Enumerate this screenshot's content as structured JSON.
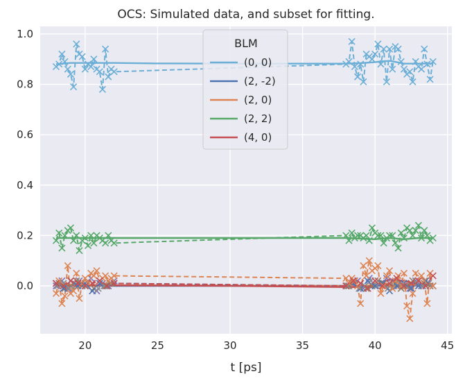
{
  "chart_data": {
    "type": "line",
    "title": "OCS: Simulated data, and subset for fitting.",
    "xlabel": "t [ps]",
    "ylabel": "",
    "xlim": [
      16.9,
      45.3
    ],
    "ylim": [
      -0.19,
      1.03
    ],
    "xticks": [
      20,
      25,
      30,
      35,
      40,
      45
    ],
    "yticks": [
      0.0,
      0.2,
      0.4,
      0.6,
      0.8,
      1.0
    ],
    "grid": true,
    "background": "#eaeaf2",
    "legend": {
      "title": "BLM",
      "placement": "upper-center"
    },
    "series": [
      {
        "name": "(0, 0)",
        "color": "#6baed6",
        "model": {
          "x": [
            18,
            19,
            20,
            21,
            22,
            25,
            30,
            35,
            38,
            39,
            40,
            40.5,
            41,
            41.5,
            42,
            43,
            44
          ],
          "y": [
            0.88,
            0.885,
            0.885,
            0.885,
            0.885,
            0.883,
            0.882,
            0.882,
            0.882,
            0.884,
            0.888,
            0.891,
            0.893,
            0.888,
            0.882,
            0.882,
            0.883
          ]
        },
        "fit_line": {
          "x": [
            18,
            18.2,
            18.4,
            18.6,
            18.8,
            19.0,
            19.2,
            19.4,
            19.6,
            19.8,
            20.0,
            20.2,
            20.4,
            20.6,
            20.8,
            21.0,
            21.2,
            21.4,
            21.6,
            21.8,
            22.0,
            38.0,
            38.2,
            38.4,
            38.6,
            38.8,
            39.0,
            39.2,
            39.4,
            39.6,
            39.8,
            40.0,
            40.2,
            40.4,
            40.6,
            40.8,
            41.0,
            41.2,
            41.4,
            41.6,
            41.8,
            42.0,
            42.2,
            42.4,
            42.6,
            42.8,
            43.0,
            43.2,
            43.4,
            43.6,
            43.8,
            44.0
          ],
          "y": [
            0.87,
            0.88,
            0.92,
            0.89,
            0.86,
            0.84,
            0.79,
            0.96,
            0.92,
            0.91,
            0.86,
            0.88,
            0.87,
            0.9,
            0.86,
            0.85,
            0.78,
            0.94,
            0.83,
            0.86,
            0.85,
            0.88,
            0.89,
            0.97,
            0.87,
            0.83,
            0.88,
            0.81,
            0.92,
            0.91,
            0.9,
            0.92,
            0.96,
            0.88,
            0.94,
            0.81,
            0.94,
            0.86,
            0.95,
            0.94,
            0.89,
            0.86,
            0.84,
            0.85,
            0.81,
            0.89,
            0.87,
            0.86,
            0.94,
            0.88,
            0.82,
            0.89
          ]
        }
      },
      {
        "name": "(2, -2)",
        "color": "#4c72b0",
        "model": {
          "x": [
            18,
            22,
            30,
            38,
            44
          ],
          "y": [
            0.001,
            0.0,
            0.0,
            0.0,
            0.001
          ]
        },
        "fit_line": {
          "x": [
            18,
            18.5,
            19,
            19.5,
            20,
            20.5,
            21,
            21.5,
            22,
            38,
            38.5,
            39,
            39.5,
            40,
            40.5,
            41,
            41.5,
            42,
            42.5,
            43,
            43.5,
            44
          ],
          "y": [
            0.01,
            -0.01,
            0.02,
            0.0,
            0.01,
            -0.02,
            0.01,
            0.0,
            0.01,
            0.0,
            0.01,
            -0.01,
            0.02,
            0.0,
            0.01,
            -0.02,
            0.0,
            0.01,
            -0.01,
            0.0,
            0.02,
            0.0
          ]
        }
      },
      {
        "name": "(2, 0)",
        "color": "#dd8452",
        "model": {
          "x": [
            18,
            22,
            30,
            38,
            44
          ],
          "y": [
            0.005,
            0.003,
            0.001,
            0.0,
            0.005
          ]
        },
        "fit_line": {
          "x": [
            18.0,
            18.2,
            18.4,
            18.6,
            18.8,
            19.0,
            19.2,
            19.4,
            19.6,
            19.8,
            20.0,
            20.2,
            20.4,
            20.6,
            20.8,
            21.0,
            21.2,
            21.4,
            21.6,
            21.8,
            22.0,
            38.0,
            38.2,
            38.4,
            38.6,
            38.8,
            39.0,
            39.2,
            39.4,
            39.6,
            39.8,
            40.0,
            40.2,
            40.4,
            40.6,
            40.8,
            41.0,
            41.2,
            41.4,
            41.6,
            41.8,
            42.0,
            42.2,
            42.4,
            42.6,
            42.8,
            43.0,
            43.2,
            43.4,
            43.6,
            43.8,
            44.0
          ],
          "y": [
            -0.03,
            0.02,
            -0.07,
            -0.04,
            0.08,
            -0.03,
            -0.02,
            0.05,
            -0.05,
            0.01,
            0.03,
            0.01,
            0.05,
            0.04,
            0.06,
            0.02,
            0.03,
            0.04,
            0.02,
            0.03,
            0.04,
            0.03,
            0.01,
            0.03,
            0.02,
            0.0,
            -0.07,
            0.08,
            0.04,
            0.1,
            0.06,
            0.07,
            0.08,
            -0.03,
            0.0,
            0.04,
            0.06,
            -0.01,
            0.02,
            0.04,
            0.0,
            0.05,
            -0.08,
            -0.13,
            -0.03,
            0.05,
            0.02,
            0.04,
            0.02,
            -0.07,
            0.05,
            0.0
          ]
        }
      },
      {
        "name": "(2, 2)",
        "color": "#55a868",
        "model": {
          "x": [
            18,
            22,
            30,
            38,
            40,
            41,
            42,
            43,
            44
          ],
          "y": [
            0.19,
            0.19,
            0.19,
            0.19,
            0.185,
            0.19,
            0.185,
            0.19,
            0.19
          ]
        },
        "fit_line": {
          "x": [
            18.0,
            18.2,
            18.4,
            18.6,
            18.8,
            19.0,
            19.2,
            19.4,
            19.6,
            19.8,
            20.0,
            20.2,
            20.4,
            20.6,
            20.8,
            21.0,
            21.2,
            21.4,
            21.6,
            21.8,
            22.0,
            38.0,
            38.2,
            38.4,
            38.6,
            38.8,
            39.0,
            39.2,
            39.4,
            39.6,
            39.8,
            40.0,
            40.2,
            40.4,
            40.6,
            40.8,
            41.0,
            41.2,
            41.4,
            41.6,
            41.8,
            42.0,
            42.2,
            42.4,
            42.6,
            42.8,
            43.0,
            43.2,
            43.4,
            43.6,
            43.8,
            44.0
          ],
          "y": [
            0.18,
            0.21,
            0.15,
            0.2,
            0.22,
            0.23,
            0.18,
            0.2,
            0.14,
            0.18,
            0.19,
            0.16,
            0.2,
            0.17,
            0.2,
            0.19,
            0.18,
            0.17,
            0.2,
            0.18,
            0.17,
            0.2,
            0.18,
            0.21,
            0.19,
            0.2,
            0.2,
            0.19,
            0.2,
            0.18,
            0.23,
            0.21,
            0.2,
            0.2,
            0.17,
            0.19,
            0.2,
            0.2,
            0.17,
            0.15,
            0.21,
            0.19,
            0.23,
            0.22,
            0.2,
            0.22,
            0.24,
            0.19,
            0.22,
            0.2,
            0.18,
            0.19
          ]
        }
      },
      {
        "name": "(4, 0)",
        "color": "#c44e52",
        "model": {
          "x": [
            18,
            22,
            30,
            38,
            39,
            40,
            40.5,
            41,
            42,
            43,
            44
          ],
          "y": [
            0.0,
            0.002,
            0.0,
            -0.005,
            -0.005,
            -0.005,
            0.015,
            0.025,
            0.02,
            0.005,
            0.008
          ]
        },
        "fit_line": {
          "x": [
            18,
            18.5,
            19,
            19.5,
            20,
            20.5,
            21,
            21.5,
            22,
            38,
            38.5,
            39,
            39.5,
            40,
            40.5,
            41,
            41.5,
            42,
            42.5,
            43,
            43.5,
            44
          ],
          "y": [
            0.01,
            0.0,
            0.02,
            0.01,
            0.0,
            0.01,
            0.02,
            0.0,
            0.01,
            0.0,
            0.02,
            0.01,
            -0.01,
            0.02,
            0.0,
            0.01,
            0.03,
            0.0,
            0.01,
            0.02,
            0.0,
            0.04
          ]
        }
      }
    ],
    "extra_markers": [
      {
        "color": "#8172b3",
        "x": [
          18.0,
          18.4,
          18.8,
          19.2,
          19.6,
          20.0,
          20.4,
          20.8,
          21.2,
          21.6,
          22.0,
          38.0,
          38.4,
          38.8,
          39.2,
          39.6,
          40.0,
          40.4,
          40.8,
          41.2,
          41.6,
          42.0,
          42.4,
          42.8,
          43.2,
          43.6,
          44.0
        ],
        "y": [
          0.0,
          0.02,
          -0.01,
          0.01,
          0.02,
          0.0,
          0.03,
          -0.02,
          0.01,
          0.0,
          0.02,
          0.0,
          0.01,
          0.02,
          -0.01,
          0.03,
          0.0,
          0.01,
          0.03,
          0.02,
          0.0,
          0.01,
          -0.01,
          0.02,
          0.0,
          0.01,
          0.0
        ]
      },
      {
        "color": "#937860",
        "x": [
          18.2,
          18.6,
          19.0,
          19.4,
          19.8,
          20.2,
          20.6,
          21.0,
          21.4,
          21.8,
          38.2,
          38.6,
          39.0,
          39.4,
          39.8,
          40.2,
          40.6,
          41.0,
          41.4,
          41.8,
          42.2,
          42.6,
          43.0,
          43.4,
          43.8
        ],
        "y": [
          0.01,
          -0.01,
          0.0,
          0.02,
          0.0,
          0.01,
          -0.01,
          0.02,
          0.0,
          0.01,
          0.0,
          0.02,
          0.01,
          -0.01,
          0.0,
          0.02,
          0.01,
          0.0,
          0.01,
          -0.01,
          0.0,
          0.02,
          0.0,
          0.01,
          0.0
        ]
      },
      {
        "color": "#8c8c8c",
        "x": [
          18.1,
          18.5,
          18.9,
          19.3,
          19.7,
          20.1,
          20.5,
          20.9,
          21.3,
          21.7,
          38.1,
          38.5,
          38.9,
          39.3,
          39.7,
          40.1,
          40.5,
          40.9,
          41.3,
          41.7,
          42.1,
          42.5,
          42.9,
          43.3,
          43.7
        ],
        "y": [
          0.0,
          0.01,
          -0.01,
          0.0,
          0.01,
          0.0,
          0.01,
          -0.01,
          0.0,
          0.01,
          0.0,
          0.01,
          -0.01,
          0.0,
          0.02,
          0.0,
          0.01,
          -0.01,
          0.0,
          0.01,
          0.0,
          -0.01,
          0.01,
          0.0,
          0.01
        ]
      }
    ]
  }
}
